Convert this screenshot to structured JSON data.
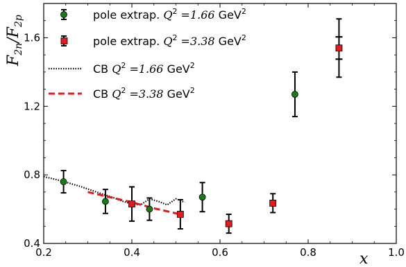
{
  "chart_data": {
    "type": "scatter",
    "xlabel": "x",
    "ylabel": "F_{2n}/F_{2p}",
    "xlim": [
      0.2,
      1.0
    ],
    "ylim": [
      0.4,
      1.8
    ],
    "xticks": [
      0.2,
      0.4,
      0.6,
      0.8,
      1.0
    ],
    "xtick_labels": [
      "0.2",
      "0.4",
      "0.6",
      "0.8",
      "1.0"
    ],
    "yticks": [
      0.4,
      0.8,
      1.2,
      1.6
    ],
    "ytick_labels": [
      "0.4",
      "0.8",
      "1.2",
      "1.6"
    ],
    "legend_position": "top-left",
    "series": [
      {
        "name": "pole extrap. Q² =1.66 GeV²",
        "legend_prefix": "pole extrap.",
        "legend_q": "1.66",
        "kind": "points",
        "marker": "circle",
        "color": "#1a7a1a",
        "points": [
          {
            "x": 0.245,
            "y": 0.76,
            "err": 0.065
          },
          {
            "x": 0.34,
            "y": 0.645,
            "err": 0.07
          },
          {
            "x": 0.44,
            "y": 0.6,
            "err": 0.065
          },
          {
            "x": 0.56,
            "y": 0.67,
            "err": 0.085
          },
          {
            "x": 0.77,
            "y": 1.27,
            "err": 0.13
          }
        ]
      },
      {
        "name": "pole extrap. Q² =3.38 GeV²",
        "legend_prefix": "pole extrap.",
        "legend_q": "3.38",
        "kind": "points",
        "marker": "square",
        "color": "#e41a1c",
        "points": [
          {
            "x": 0.4,
            "y": 0.63,
            "err": 0.1
          },
          {
            "x": 0.51,
            "y": 0.57,
            "err": 0.085
          },
          {
            "x": 0.62,
            "y": 0.515,
            "err": 0.055
          },
          {
            "x": 0.72,
            "y": 0.635,
            "err": 0.055
          },
          {
            "x": 0.87,
            "y": 1.54,
            "err": 0.17
          }
        ]
      },
      {
        "name": "CB Q² =1.66 GeV²",
        "legend_prefix": "CB",
        "legend_q": "1.66",
        "kind": "line",
        "style": "dotted",
        "color": "#000000",
        "x": [
          0.2,
          0.24,
          0.28,
          0.32,
          0.36,
          0.38,
          0.4,
          0.42,
          0.44,
          0.46,
          0.48,
          0.5,
          0.52
        ],
        "y": [
          0.79,
          0.765,
          0.735,
          0.7,
          0.665,
          0.645,
          0.63,
          0.625,
          0.66,
          0.645,
          0.625,
          0.66,
          0.64
        ]
      },
      {
        "name": "CB Q² =3.38 GeV²",
        "legend_prefix": "CB",
        "legend_q": "3.38",
        "kind": "line",
        "style": "dashed",
        "color": "#e41a1c",
        "x": [
          0.3,
          0.35,
          0.4,
          0.45,
          0.51
        ],
        "y": [
          0.7,
          0.67,
          0.64,
          0.605,
          0.57
        ]
      }
    ],
    "extra_ticks": [
      {
        "x": 0.87,
        "y": 1.605
      },
      {
        "x": 0.87,
        "y": 1.475
      }
    ]
  }
}
